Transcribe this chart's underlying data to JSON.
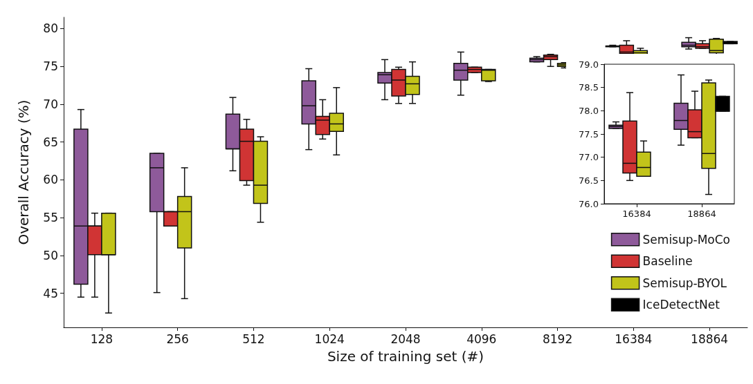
{
  "chart_data": [
    {
      "type": "box",
      "xlabel": "Size of training set (#)",
      "ylabel": "Overall Accuracy (%)",
      "categories": [
        "128",
        "256",
        "512",
        "1024",
        "2048",
        "4096",
        "8192",
        "16384",
        "18864"
      ],
      "ylim": [
        40.5,
        81.5
      ],
      "yticks": [
        45,
        50,
        55,
        60,
        65,
        70,
        75,
        80
      ],
      "legend": "bottom right",
      "series": [
        {
          "name": "Semisup-MoCo",
          "color": "#8e5a9a",
          "boxes": [
            {
              "low": 44.5,
              "q1": 46.2,
              "median": 53.9,
              "q3": 66.7,
              "high": 69.3
            },
            {
              "low": 45.1,
              "q1": 55.8,
              "median": 61.6,
              "q3": 63.5,
              "high": 63.5
            },
            {
              "low": 61.2,
              "q1": 64.1,
              "median": 64.1,
              "q3": 68.7,
              "high": 70.9
            },
            {
              "low": 64.0,
              "q1": 67.4,
              "median": 69.8,
              "q3": 73.1,
              "high": 74.7
            },
            {
              "low": 70.6,
              "q1": 72.8,
              "median": 73.9,
              "q3": 74.2,
              "high": 75.9
            },
            {
              "low": 71.2,
              "q1": 73.2,
              "median": 74.5,
              "q3": 75.4,
              "high": 76.9
            },
            {
              "low": 75.6,
              "q1": 75.6,
              "median": 75.9,
              "q3": 76.1,
              "high": 76.3
            },
            {
              "low": 77.6,
              "q1": 77.6,
              "median": 77.7,
              "q3": 77.7,
              "high": 77.8
            },
            {
              "low": 77.3,
              "q1": 77.6,
              "median": 77.8,
              "q3": 78.2,
              "high": 78.8
            }
          ]
        },
        {
          "name": "Baseline",
          "color": "#d03434",
          "boxes": [
            {
              "low": 44.5,
              "q1": 50.1,
              "median": 53.9,
              "q3": 53.9,
              "high": 55.6
            },
            {
              "low": 53.9,
              "q1": 53.9,
              "median": 55.8,
              "q3": 55.8,
              "high": 55.8
            },
            {
              "low": 59.3,
              "q1": 59.9,
              "median": 65.1,
              "q3": 66.7,
              "high": 68.0
            },
            {
              "low": 65.4,
              "q1": 66.0,
              "median": 67.9,
              "q3": 68.4,
              "high": 70.6
            },
            {
              "low": 70.1,
              "q1": 71.1,
              "median": 73.2,
              "q3": 74.6,
              "high": 74.9
            },
            {
              "low": 74.2,
              "q1": 74.2,
              "median": 74.6,
              "q3": 74.9,
              "high": 74.9
            },
            {
              "low": 75.0,
              "q1": 75.9,
              "median": 76.3,
              "q3": 76.5,
              "high": 76.6
            },
            {
              "low": 76.5,
              "q1": 76.7,
              "median": 76.9,
              "q3": 77.8,
              "high": 78.4
            },
            {
              "low": 77.4,
              "q1": 77.4,
              "median": 77.6,
              "q3": 78.0,
              "high": 78.4
            }
          ]
        },
        {
          "name": "Semisup-BYOL",
          "color": "#c2c41a",
          "boxes": [
            {
              "low": 42.4,
              "q1": 50.1,
              "median": 50.1,
              "q3": 55.6,
              "high": 55.6
            },
            {
              "low": 44.3,
              "q1": 51.0,
              "median": 55.8,
              "q3": 57.8,
              "high": 61.6
            },
            {
              "low": 54.4,
              "q1": 56.9,
              "median": 59.3,
              "q3": 65.1,
              "high": 65.7
            },
            {
              "low": 63.3,
              "q1": 66.4,
              "median": 67.4,
              "q3": 68.8,
              "high": 72.2
            },
            {
              "low": 70.1,
              "q1": 71.3,
              "median": 72.7,
              "q3": 73.7,
              "high": 75.6
            },
            {
              "low": 73.0,
              "q1": 73.1,
              "median": 74.5,
              "q3": 74.6,
              "high": 74.6
            },
            {
              "low": 74.8,
              "q1": 75.0,
              "median": 75.2,
              "q3": 75.4,
              "high": 75.5
            },
            {
              "low": 76.6,
              "q1": 76.6,
              "median": 76.8,
              "q3": 77.1,
              "high": 77.4
            },
            {
              "low": 76.2,
              "q1": 76.8,
              "median": 77.1,
              "q3": 78.6,
              "high": 78.7
            }
          ]
        },
        {
          "name": "IceDetectNet",
          "color": "#000000",
          "boxes": [
            null,
            null,
            null,
            null,
            null,
            null,
            null,
            null,
            {
              "low": 78.0,
              "q1": 78.0,
              "median": 78.0,
              "q3": 78.3,
              "high": 78.3
            }
          ]
        }
      ]
    },
    {
      "type": "box",
      "categories": [
        "16384",
        "18864"
      ],
      "ylim": [
        76,
        79
      ],
      "yticks": [
        {
          "value": 76,
          "label": "76.0"
        },
        {
          "value": 76.5,
          "label": "76.5"
        },
        {
          "value": 77,
          "label": "77.0"
        },
        {
          "value": 77.5,
          "label": "77.5"
        },
        {
          "value": 78,
          "label": "78.0"
        },
        {
          "value": 78.5,
          "label": "78.5"
        },
        {
          "value": 79,
          "label": "79.0"
        }
      ],
      "series": [
        {
          "color": "#8e5a9a",
          "boxes": [
            {
              "low": 77.62,
              "q1": 77.62,
              "median": 77.66,
              "q3": 77.69,
              "high": 77.76
            },
            {
              "low": 77.26,
              "q1": 77.6,
              "median": 77.79,
              "q3": 78.16,
              "high": 78.77
            }
          ]
        },
        {
          "color": "#d03434",
          "boxes": [
            {
              "low": 76.5,
              "q1": 76.66,
              "median": 76.87,
              "q3": 77.78,
              "high": 78.39
            },
            {
              "low": 77.42,
              "q1": 77.42,
              "median": 77.55,
              "q3": 78.02,
              "high": 78.42
            }
          ]
        },
        {
          "color": "#c2c41a",
          "boxes": [
            {
              "low": 76.59,
              "q1": 76.59,
              "median": 76.78,
              "q3": 77.11,
              "high": 77.35
            },
            {
              "low": 76.2,
              "q1": 76.76,
              "median": 77.08,
              "q3": 78.6,
              "high": 78.66
            }
          ]
        },
        {
          "color": "#000000",
          "boxes": [
            null,
            {
              "low": 77.99,
              "q1": 77.99,
              "median": 77.99,
              "q3": 78.31,
              "high": 78.31
            }
          ]
        }
      ]
    }
  ]
}
